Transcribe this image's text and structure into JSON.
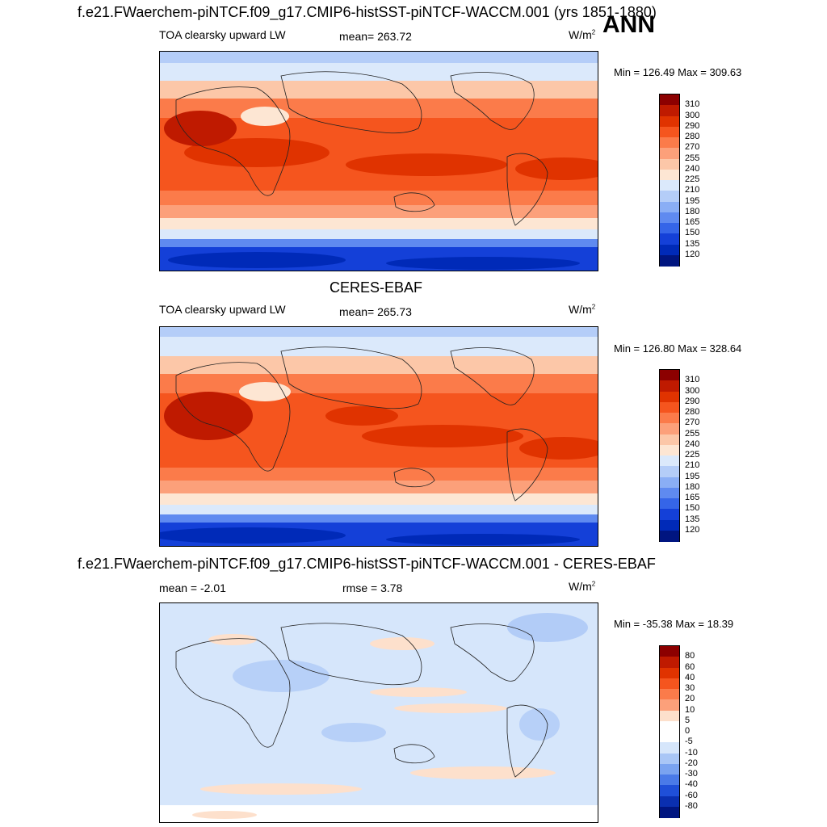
{
  "season": "ANN",
  "panel1": {
    "title": "f.e21.FWaerchem-piNTCF.f09_g17.CMIP6-histSST-piNTCF-WACCM.001 (yrs 1851-1880)",
    "left_label": "TOA clearsky upward LW",
    "center_label": "mean= 263.72",
    "units": "W/m",
    "units_exp": "2",
    "minmax": "Min = 126.49 Max = 309.63",
    "colorbar": {
      "labels": [
        "310",
        "300",
        "290",
        "280",
        "270",
        "255",
        "240",
        "225",
        "210",
        "195",
        "180",
        "165",
        "150",
        "135",
        "120"
      ],
      "colors": [
        "#8c0000",
        "#bf1a00",
        "#e03300",
        "#f5551e",
        "#fb7b4a",
        "#fca07a",
        "#fcc7a8",
        "#fde6d3",
        "#dbe9fb",
        "#b4cdf8",
        "#8aaef5",
        "#5f8af0",
        "#3565e8",
        "#1440d8",
        "#002ab8",
        "#001580"
      ]
    },
    "map_colors": {
      "tropics": "#e03300",
      "subtropics": "#f5551e",
      "midlat": "#fca07a",
      "highlat": "#fde6d3",
      "polar": "#b4cdf8",
      "antarctic": "#1440d8"
    }
  },
  "panel2": {
    "title": "CERES-EBAF",
    "left_label": "TOA clearsky upward LW",
    "center_label": "mean= 265.73",
    "units": "W/m",
    "units_exp": "2",
    "minmax": "Min = 126.80 Max = 328.64",
    "colorbar": {
      "labels": [
        "310",
        "300",
        "290",
        "280",
        "270",
        "255",
        "240",
        "225",
        "210",
        "195",
        "180",
        "165",
        "150",
        "135",
        "120"
      ],
      "colors": [
        "#8c0000",
        "#bf1a00",
        "#e03300",
        "#f5551e",
        "#fb7b4a",
        "#fca07a",
        "#fcc7a8",
        "#fde6d3",
        "#dbe9fb",
        "#b4cdf8",
        "#8aaef5",
        "#5f8af0",
        "#3565e8",
        "#1440d8",
        "#002ab8",
        "#001580"
      ]
    }
  },
  "panel3": {
    "title": "f.e21.FWaerchem-piNTCF.f09_g17.CMIP6-histSST-piNTCF-WACCM.001 - CERES-EBAF",
    "left_label": "mean =  -2.01",
    "center_label": "rmse =   3.78",
    "units": "W/m",
    "units_exp": "2",
    "minmax": "Min = -35.38 Max =  18.39",
    "colorbar": {
      "labels": [
        "80",
        "60",
        "40",
        "30",
        "20",
        "10",
        "5",
        "0",
        "-5",
        "-10",
        "-20",
        "-30",
        "-40",
        "-60",
        "-80"
      ],
      "colors": [
        "#8c0000",
        "#bf1a00",
        "#e03300",
        "#f5551e",
        "#fb7b4a",
        "#fca07a",
        "#fde0cc",
        "#ffffff",
        "#ffffff",
        "#d6e6fb",
        "#a9c6f6",
        "#7aa3f0",
        "#4a7ae8",
        "#1f4fd8",
        "#0a2fb0",
        "#001580"
      ]
    }
  }
}
